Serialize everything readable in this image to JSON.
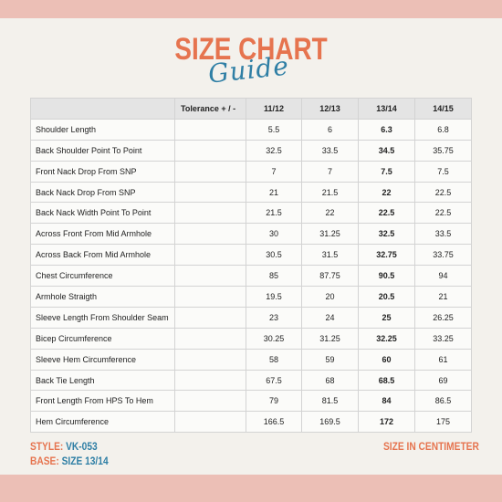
{
  "header": {
    "title": "SIZE CHART",
    "script": "Guide"
  },
  "table": {
    "columns": [
      "",
      "Tolerance + / -",
      "11/12",
      "12/13",
      "13/14",
      "14/15"
    ],
    "rows": [
      {
        "name": "Shoulder Length",
        "tolerance": "",
        "values": [
          "5.5",
          "6",
          "6.3",
          "6.8"
        ]
      },
      {
        "name": "Back Shoulder Point To Point",
        "tolerance": "",
        "values": [
          "32.5",
          "33.5",
          "34.5",
          "35.75"
        ]
      },
      {
        "name": "Front Nack Drop From SNP",
        "tolerance": "",
        "values": [
          "7",
          "7",
          "7.5",
          "7.5"
        ]
      },
      {
        "name": "Back Nack Drop From SNP",
        "tolerance": "",
        "values": [
          "21",
          "21.5",
          "22",
          "22.5"
        ]
      },
      {
        "name": "Back Nack Width Point To Point",
        "tolerance": "",
        "values": [
          "21.5",
          "22",
          "22.5",
          "22.5"
        ]
      },
      {
        "name": "Across Front From Mid Armhole",
        "tolerance": "",
        "values": [
          "30",
          "31.25",
          "32.5",
          "33.5"
        ]
      },
      {
        "name": "Across Back From Mid Armhole",
        "tolerance": "",
        "values": [
          "30.5",
          "31.5",
          "32.75",
          "33.75"
        ]
      },
      {
        "name": "Chest Circumference",
        "tolerance": "",
        "values": [
          "85",
          "87.75",
          "90.5",
          "94"
        ]
      },
      {
        "name": "Armhole Straigth",
        "tolerance": "",
        "values": [
          "19.5",
          "20",
          "20.5",
          "21"
        ]
      },
      {
        "name": "Sleeve Length From Shoulder Seam",
        "tolerance": "",
        "values": [
          "23",
          "24",
          "25",
          "26.25"
        ]
      },
      {
        "name": "Bicep Circumference",
        "tolerance": "",
        "values": [
          "30.25",
          "31.25",
          "32.25",
          "33.25"
        ]
      },
      {
        "name": "Sleeve Hem Circumference",
        "tolerance": "",
        "values": [
          "58",
          "59",
          "60",
          "61"
        ]
      },
      {
        "name": "Back Tie Length",
        "tolerance": "",
        "values": [
          "67.5",
          "68",
          "68.5",
          "69"
        ]
      },
      {
        "name": "Front Length From HPS To Hem",
        "tolerance": "",
        "values": [
          "79",
          "81.5",
          "84",
          "86.5"
        ]
      },
      {
        "name": "Hem Circumference",
        "tolerance": "",
        "values": [
          "166.5",
          "169.5",
          "172",
          "175"
        ]
      }
    ]
  },
  "footer": {
    "style_label": "STYLE:",
    "style_value": "VK-053",
    "base_label": "BASE:",
    "base_value": "SIZE 13/14",
    "unit": "SIZE IN CENTIMETER"
  },
  "colors": {
    "accent": "#e6744f",
    "script": "#2f7fa5",
    "band": "#ecbfb6",
    "background": "#f3f1ec"
  }
}
